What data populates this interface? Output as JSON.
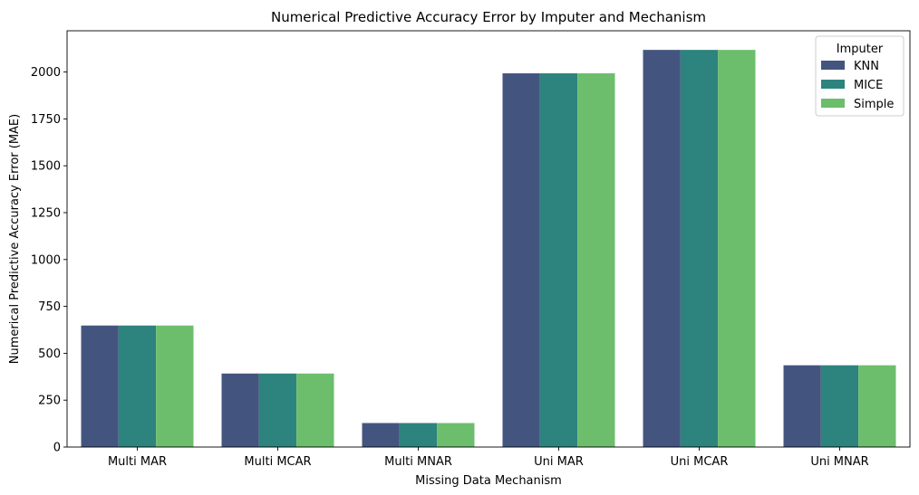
{
  "chart_data": {
    "type": "bar",
    "title": "Numerical Predictive Accuracy Error by Imputer and Mechanism",
    "xlabel": "Missing Data Mechanism",
    "ylabel": "Numerical Predictive Accuracy Error (MAE)",
    "ylim": [
      0,
      2220
    ],
    "yticks": [
      "0",
      "250",
      "500",
      "750",
      "1000",
      "1250",
      "1500",
      "1750",
      "2000"
    ],
    "categories": [
      "Multi MAR",
      "Multi MCAR",
      "Multi MNAR",
      "Uni MAR",
      "Uni MCAR",
      "Uni MNAR"
    ],
    "series": [
      {
        "name": "KNN",
        "color": "#43557f",
        "values": [
          648,
          392,
          128,
          1993,
          2118,
          436
        ]
      },
      {
        "name": "MICE",
        "color": "#2d837d",
        "values": [
          648,
          392,
          128,
          1993,
          2118,
          436
        ]
      },
      {
        "name": "Simple",
        "color": "#6cbe6c",
        "values": [
          648,
          392,
          128,
          1993,
          2118,
          436
        ]
      }
    ],
    "legend": {
      "title": "Imputer",
      "placement": "top-right"
    },
    "grid": false
  }
}
